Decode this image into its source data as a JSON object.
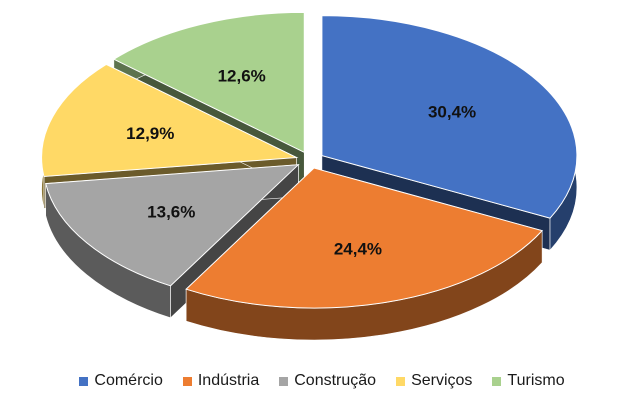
{
  "chart_data": {
    "type": "pie",
    "style": "3d-exploded",
    "title": "",
    "categories": [
      "Comércio",
      "Indústria",
      "Construção",
      "Serviços",
      "Turismo"
    ],
    "values": [
      30.4,
      24.4,
      13.6,
      12.9,
      12.6
    ],
    "labels": [
      "30,4%",
      "24,4%",
      "13,6%",
      "12,9%",
      "12,6%"
    ],
    "colors": [
      "#4472C4",
      "#ED7D31",
      "#A5A5A5",
      "#FFD966",
      "#A9D18E"
    ],
    "legend_position": "bottom"
  }
}
